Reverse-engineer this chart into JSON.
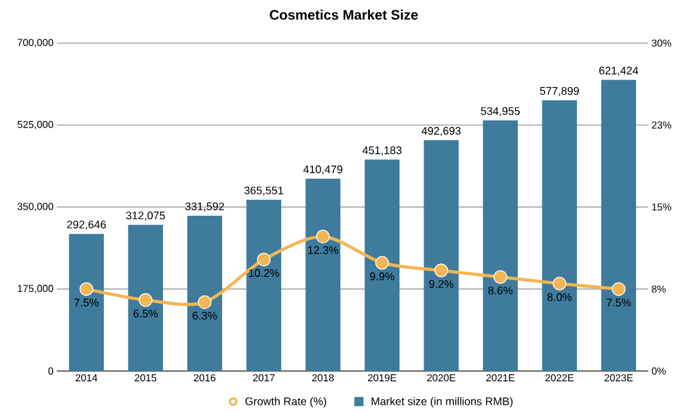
{
  "chart_data": {
    "type": "bar",
    "title": "Cosmetics Market Size",
    "categories": [
      "2014",
      "2015",
      "2016",
      "2017",
      "2018",
      "2019E",
      "2020E",
      "2021E",
      "2022E",
      "2023E"
    ],
    "series": [
      {
        "name": "Market size (in millions RMB)",
        "color": "#3e7b9c",
        "values": [
          292646,
          312075,
          331592,
          365551,
          410479,
          451183,
          492693,
          534955,
          577899,
          621424
        ],
        "value_labels": [
          "292,646",
          "312,075",
          "331,592",
          "365,551",
          "410,479",
          "451,183",
          "492,693",
          "534,955",
          "577,899",
          "621,424"
        ]
      },
      {
        "name": "Growth Rate (%)",
        "type": "line",
        "axis": "y2",
        "color": "#f2b654",
        "marker": "circle",
        "values": [
          7.5,
          6.5,
          6.3,
          10.2,
          12.3,
          9.9,
          9.2,
          8.6,
          8.0,
          7.5
        ],
        "value_labels": [
          "7.5%",
          "6.5%",
          "6.3%",
          "10.2%",
          "12.3%",
          "9.9%",
          "9.2%",
          "8.6%",
          "8.0%",
          "7.5%"
        ]
      }
    ],
    "ylim": [
      0,
      700000
    ],
    "yticks": [
      {
        "value": 0,
        "label": "0"
      },
      {
        "value": 175000,
        "label": "175,000"
      },
      {
        "value": 350000,
        "label": "350,000"
      },
      {
        "value": 525000,
        "label": "525,000"
      },
      {
        "value": 700000,
        "label": "700,000"
      }
    ],
    "y2lim": [
      0,
      30
    ],
    "y2ticks": [
      {
        "value": 0,
        "label": "0%"
      },
      {
        "value": 7.5,
        "label": "8%"
      },
      {
        "value": 15,
        "label": "15%"
      },
      {
        "value": 22.5,
        "label": "23%"
      },
      {
        "value": 30,
        "label": "30%"
      }
    ],
    "grid": "y",
    "legend": "bottom"
  }
}
